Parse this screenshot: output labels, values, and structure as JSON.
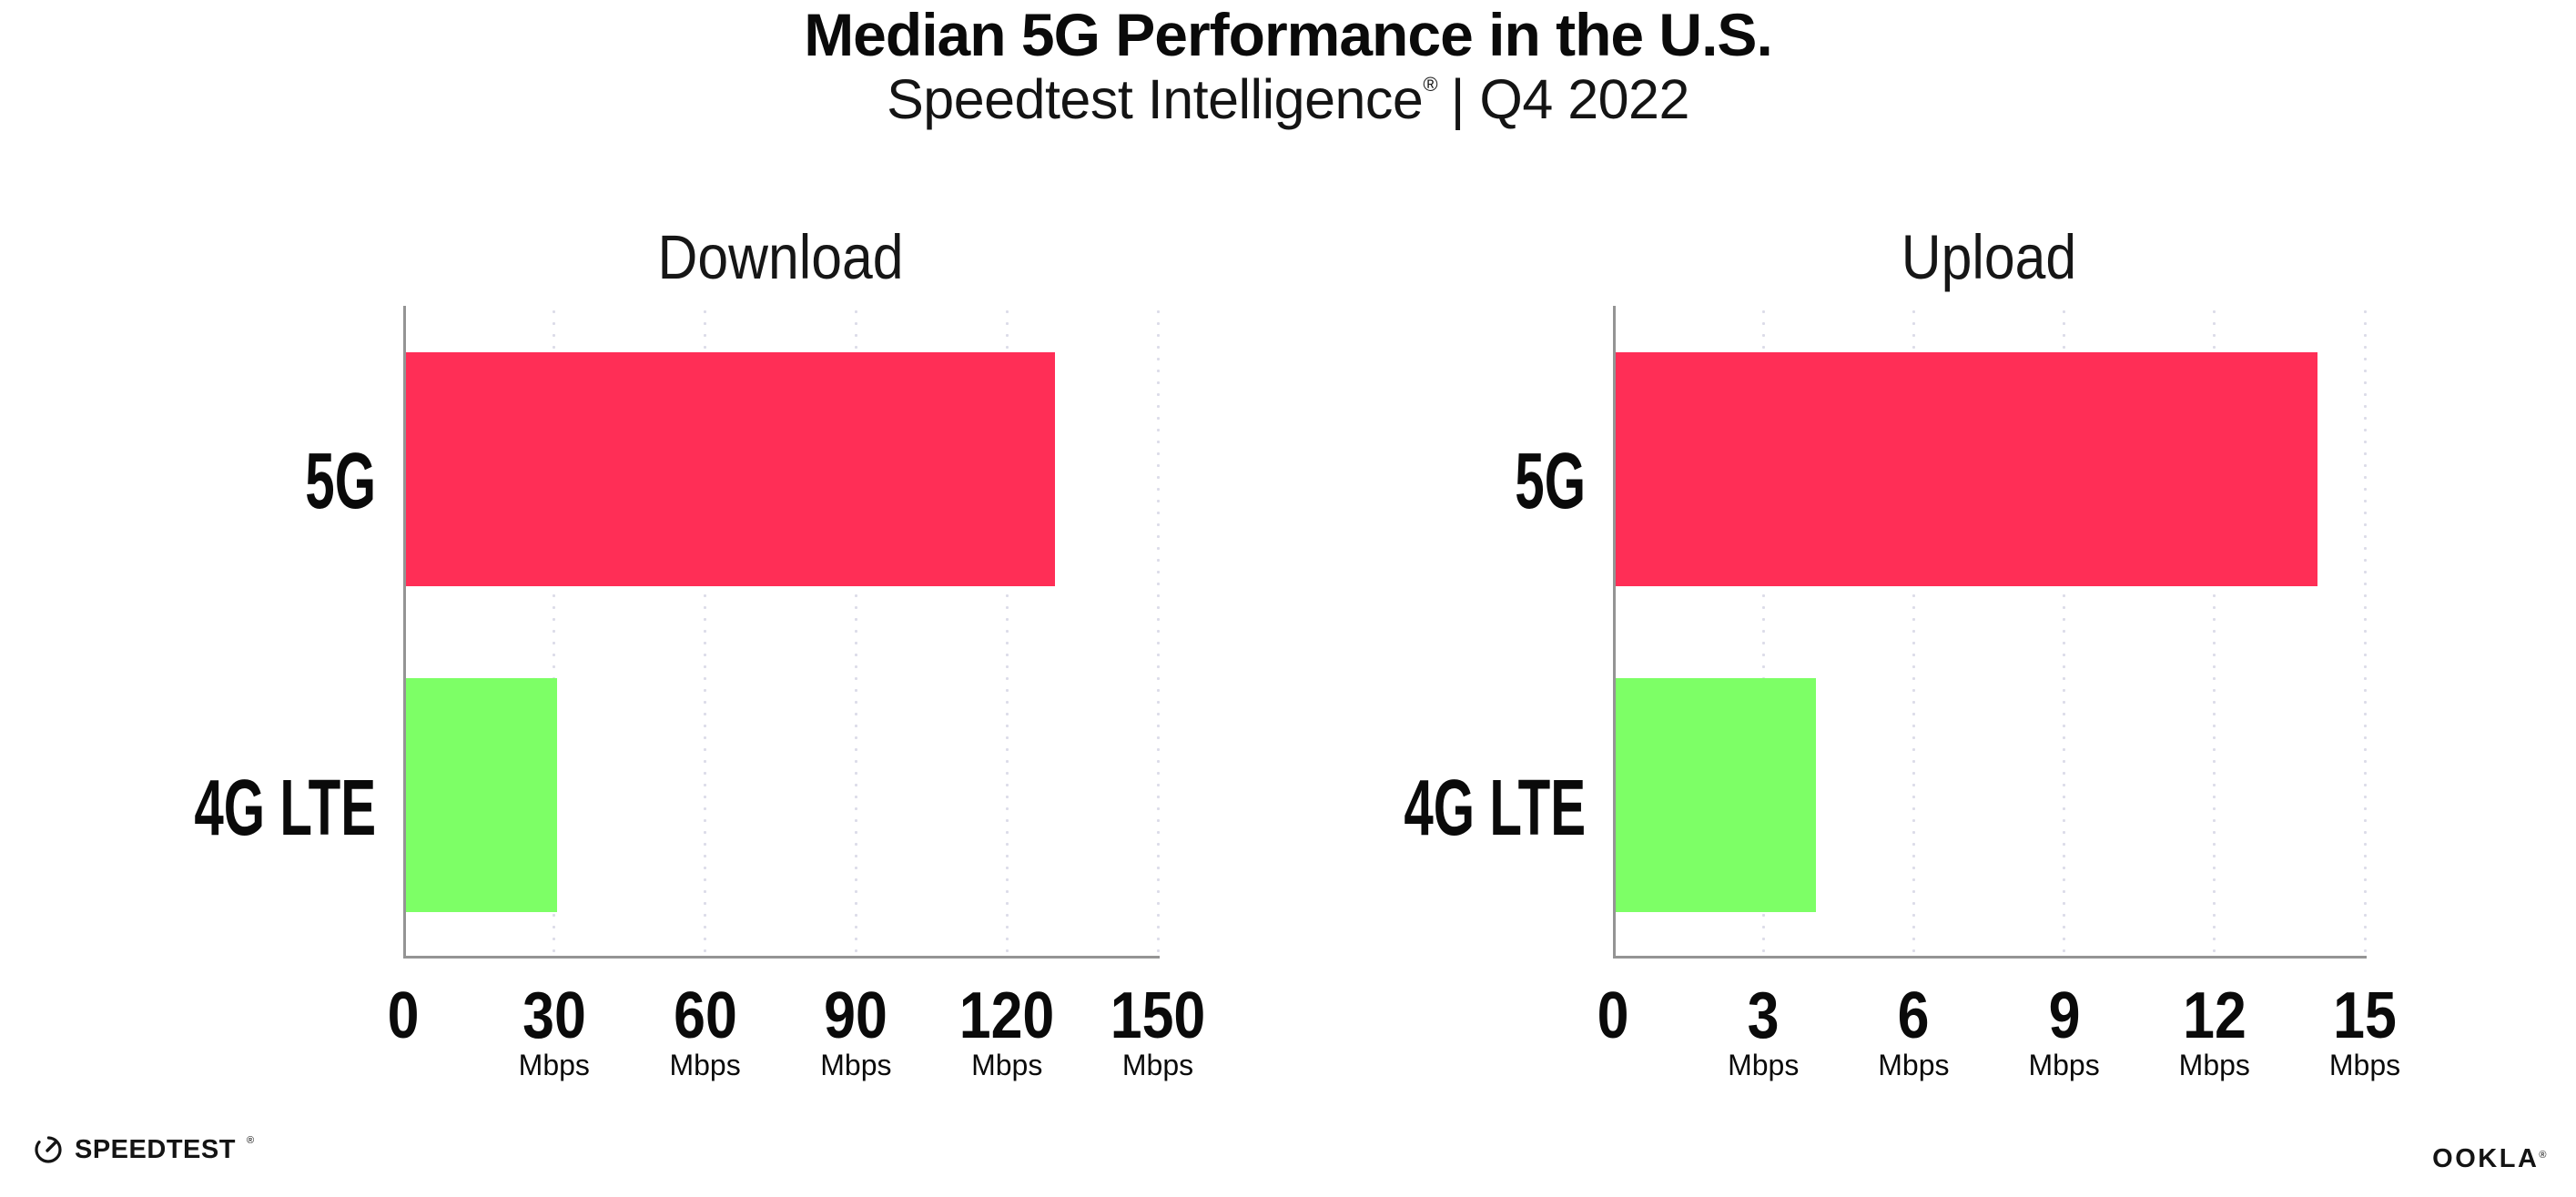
{
  "header": {
    "title": "Median 5G Performance in the U.S.",
    "subtitle_brand": "Speedtest Intelligence",
    "subtitle_mark": "®",
    "subtitle_period": "| Q4 2022"
  },
  "chart_data": [
    {
      "type": "bar",
      "orientation": "horizontal",
      "title": "Download",
      "categories": [
        "5G",
        "4G LTE"
      ],
      "values": [
        129,
        30
      ],
      "unit": "Mbps",
      "xlim": [
        0,
        150
      ],
      "xticks": [
        0,
        30,
        60,
        90,
        120,
        150
      ],
      "bar_colors": [
        "#ff2e56",
        "#7dff66"
      ],
      "grid": "vertical-dotted",
      "legend": "none"
    },
    {
      "type": "bar",
      "orientation": "horizontal",
      "title": "Upload",
      "categories": [
        "5G",
        "4G LTE"
      ],
      "values": [
        14,
        4
      ],
      "unit": "Mbps",
      "xlim": [
        0,
        15
      ],
      "xticks": [
        0,
        3,
        6,
        9,
        12,
        15
      ],
      "bar_colors": [
        "#ff2e56",
        "#7dff66"
      ],
      "grid": "vertical-dotted",
      "legend": "none"
    }
  ],
  "footer": {
    "left_brand": "SPEEDTEST",
    "left_mark": "®",
    "right_brand": "OOKLA",
    "right_mark": "®"
  },
  "colors": {
    "bar_5g": "#ff2e56",
    "bar_4g_lte": "#7dff66",
    "axis_spine": "#949494",
    "grid_dot": "#dcdce9",
    "text": "#0a0a0a",
    "background": "#ffffff"
  }
}
